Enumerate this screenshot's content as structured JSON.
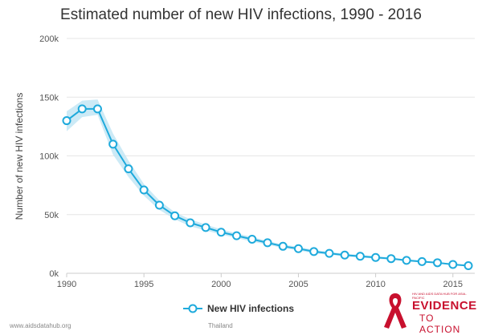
{
  "colors": {
    "series": "#1eaadc",
    "band": "#c3e6f5",
    "grid": "#e6e6e6",
    "logo": "#c8102e"
  },
  "chart_data": {
    "type": "line",
    "title": "Estimated number of new HIV infections, 1990 - 2016",
    "xlabel": "",
    "ylabel": "Number of new HIV infections",
    "xlim": [
      1990,
      2016
    ],
    "ylim": [
      0,
      200000
    ],
    "x_ticks": [
      "1990",
      "1995",
      "2000",
      "2005",
      "2010",
      "2015"
    ],
    "y_ticks": [
      "0k",
      "50k",
      "100k",
      "150k",
      "200k"
    ],
    "grid": true,
    "legend": "bottom",
    "series": [
      {
        "name": "New HIV infections",
        "x": [
          1990,
          1991,
          1992,
          1993,
          1994,
          1995,
          1996,
          1997,
          1998,
          1999,
          2000,
          2001,
          2002,
          2003,
          2004,
          2005,
          2006,
          2007,
          2008,
          2009,
          2010,
          2011,
          2012,
          2013,
          2014,
          2015,
          2016
        ],
        "y": [
          130000,
          140000,
          140000,
          110000,
          89000,
          71000,
          58000,
          49000,
          43000,
          39000,
          35000,
          32000,
          29000,
          26000,
          23000,
          21000,
          18500,
          17000,
          15500,
          14500,
          13500,
          12500,
          11000,
          10000,
          9000,
          7500,
          6500
        ],
        "lower": [
          121000,
          133000,
          135000,
          101000,
          82000,
          66000,
          54000,
          46000,
          40000,
          36500,
          33000,
          30000,
          27000,
          24500,
          21500,
          19500,
          17000,
          15800,
          14400,
          13400,
          12500,
          11500,
          10200,
          9200,
          8300,
          7000,
          5800
        ],
        "upper": [
          138000,
          147000,
          148000,
          119000,
          96000,
          76000,
          62000,
          52000,
          46000,
          41500,
          37500,
          34000,
          31000,
          27500,
          24500,
          22500,
          20000,
          18200,
          16600,
          15600,
          14500,
          13500,
          11800,
          10800,
          9700,
          8000,
          7200
        ]
      }
    ]
  },
  "footer": {
    "url": "www.aidsdatahub.org",
    "country": "Thailand"
  },
  "logo": {
    "main": "EVIDENCE",
    "sub": "TO ACTION",
    "small": "HIV AND AIDS DATA HUB FOR ASIA-PACIFIC"
  }
}
